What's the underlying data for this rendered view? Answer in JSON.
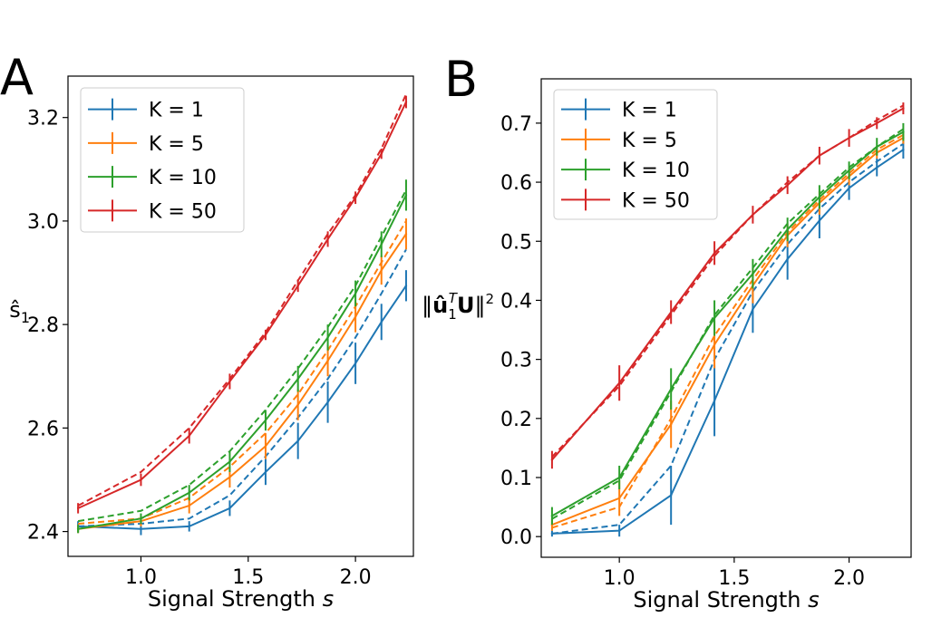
{
  "chart_data": [
    {
      "type": "line",
      "panel_label": "A",
      "xlabel": "Signal Strength s",
      "xlabel_parts": [
        "Signal Strength ",
        "s"
      ],
      "ylabel": "ŝ₁",
      "ylabel_parts": [
        "ŝ",
        "1"
      ],
      "xlim": [
        0.66,
        2.27
      ],
      "ylim": [
        2.352,
        3.28
      ],
      "xticks": [
        1.0,
        1.5,
        2.0
      ],
      "xtick_labels": [
        "1.0",
        "1.5",
        "2.0"
      ],
      "yticks": [
        2.4,
        2.6,
        2.8,
        3.0,
        3.2
      ],
      "ytick_labels": [
        "2.4",
        "2.6",
        "2.8",
        "3.0",
        "3.2"
      ],
      "legend_position": "top-left",
      "line_styles": {
        "solid": "empirical with error bars",
        "dashed": "theory"
      },
      "x": [
        0.707,
        1.0,
        1.225,
        1.414,
        1.581,
        1.732,
        1.871,
        2.0,
        2.121,
        2.236
      ],
      "series": [
        {
          "name": "K = 1",
          "color": "#1f77b4",
          "values": [
            2.41,
            2.405,
            2.41,
            2.445,
            2.515,
            2.575,
            2.65,
            2.725,
            2.805,
            2.875
          ],
          "errors": [
            0.01,
            0.012,
            0.01,
            0.015,
            0.025,
            0.035,
            0.04,
            0.04,
            0.035,
            0.03
          ],
          "dashed": [
            2.41,
            2.415,
            2.425,
            2.47,
            2.545,
            2.62,
            2.695,
            2.775,
            2.86,
            2.945
          ]
        },
        {
          "name": "K = 5",
          "color": "#ff7f0e",
          "values": [
            2.405,
            2.42,
            2.45,
            2.505,
            2.565,
            2.645,
            2.73,
            2.815,
            2.905,
            2.975
          ],
          "errors": [
            0.008,
            0.01,
            0.015,
            0.02,
            0.025,
            0.03,
            0.03,
            0.03,
            0.028,
            0.03
          ],
          "dashed": [
            2.415,
            2.425,
            2.465,
            2.525,
            2.59,
            2.665,
            2.75,
            2.835,
            2.92,
            3.0
          ]
        },
        {
          "name": "K = 10",
          "color": "#2ca02c",
          "values": [
            2.405,
            2.425,
            2.475,
            2.535,
            2.615,
            2.695,
            2.775,
            2.86,
            2.955,
            3.05
          ],
          "errors": [
            0.008,
            0.01,
            0.015,
            0.02,
            0.02,
            0.025,
            0.025,
            0.025,
            0.025,
            0.03
          ],
          "dashed": [
            2.42,
            2.44,
            2.49,
            2.555,
            2.635,
            2.715,
            2.795,
            2.875,
            2.97,
            3.06
          ]
        },
        {
          "name": "K = 50",
          "color": "#d62728",
          "values": [
            2.445,
            2.5,
            2.585,
            2.69,
            2.78,
            2.875,
            2.965,
            3.045,
            3.13,
            3.23
          ],
          "errors": [
            0.01,
            0.012,
            0.015,
            0.015,
            0.01,
            0.012,
            0.015,
            0.012,
            0.01,
            0.012
          ],
          "dashed": [
            2.45,
            2.515,
            2.6,
            2.695,
            2.785,
            2.885,
            2.975,
            3.05,
            3.14,
            3.245
          ]
        }
      ]
    },
    {
      "type": "line",
      "panel_label": "B",
      "xlabel": "Signal Strength s",
      "xlabel_parts": [
        "Signal Strength ",
        "s"
      ],
      "ylabel": "‖û₁ᵀU‖²",
      "ylabel_parts": [
        "‖",
        "û",
        "1",
        "T",
        "U",
        "‖",
        "2"
      ],
      "xlim": [
        0.66,
        2.27
      ],
      "ylim": [
        -0.035,
        0.775
      ],
      "xticks": [
        1.0,
        1.5,
        2.0
      ],
      "xtick_labels": [
        "1.0",
        "1.5",
        "2.0"
      ],
      "yticks": [
        0.0,
        0.1,
        0.2,
        0.3,
        0.4,
        0.5,
        0.6,
        0.7
      ],
      "ytick_labels": [
        "0.0",
        "0.1",
        "0.2",
        "0.3",
        "0.4",
        "0.5",
        "0.6",
        "0.7"
      ],
      "legend_position": "top-left",
      "line_styles": {
        "solid": "empirical with error bars",
        "dashed": "theory"
      },
      "x": [
        0.707,
        1.0,
        1.225,
        1.414,
        1.581,
        1.732,
        1.871,
        2.0,
        2.121,
        2.236
      ],
      "series": [
        {
          "name": "K = 1",
          "color": "#1f77b4",
          "values": [
            0.005,
            0.01,
            0.07,
            0.23,
            0.385,
            0.47,
            0.535,
            0.59,
            0.625,
            0.655
          ],
          "errors": [
            0.005,
            0.01,
            0.05,
            0.06,
            0.04,
            0.035,
            0.03,
            0.02,
            0.015,
            0.015
          ],
          "dashed": [
            0.005,
            0.02,
            0.12,
            0.3,
            0.415,
            0.495,
            0.555,
            0.6,
            0.635,
            0.665
          ]
        },
        {
          "name": "K = 5",
          "color": "#ff7f0e",
          "values": [
            0.02,
            0.065,
            0.19,
            0.325,
            0.425,
            0.51,
            0.565,
            0.61,
            0.65,
            0.675
          ],
          "errors": [
            0.01,
            0.03,
            0.04,
            0.04,
            0.03,
            0.02,
            0.02,
            0.015,
            0.01,
            0.01
          ],
          "dashed": [
            0.015,
            0.05,
            0.2,
            0.34,
            0.435,
            0.515,
            0.57,
            0.615,
            0.655,
            0.68
          ]
        },
        {
          "name": "K = 10",
          "color": "#2ca02c",
          "values": [
            0.035,
            0.1,
            0.25,
            0.37,
            0.445,
            0.52,
            0.575,
            0.62,
            0.66,
            0.685
          ],
          "errors": [
            0.015,
            0.02,
            0.035,
            0.03,
            0.025,
            0.02,
            0.02,
            0.015,
            0.015,
            0.015
          ],
          "dashed": [
            0.03,
            0.095,
            0.245,
            0.375,
            0.455,
            0.53,
            0.58,
            0.625,
            0.66,
            0.69
          ]
        },
        {
          "name": "K = 50",
          "color": "#d62728",
          "values": [
            0.13,
            0.26,
            0.38,
            0.48,
            0.545,
            0.595,
            0.645,
            0.675,
            0.7,
            0.725
          ],
          "errors": [
            0.015,
            0.03,
            0.02,
            0.02,
            0.015,
            0.015,
            0.015,
            0.015,
            0.01,
            0.01
          ],
          "dashed": [
            0.135,
            0.255,
            0.375,
            0.475,
            0.545,
            0.6,
            0.645,
            0.675,
            0.705,
            0.73
          ]
        }
      ]
    }
  ]
}
